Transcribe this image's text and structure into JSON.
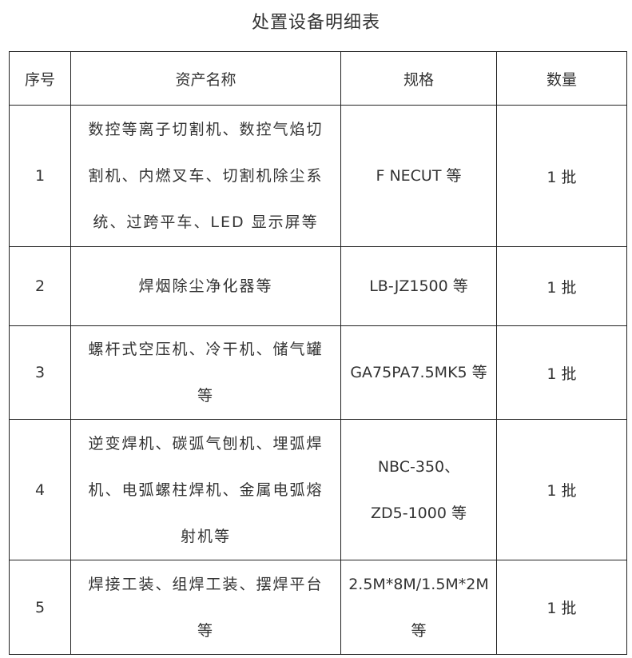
{
  "title": "处置设备明细表",
  "headers": [
    "序号",
    "资产名称",
    "规格",
    "数量"
  ],
  "rows": [
    {
      "no": "1",
      "name": [
        "数控等离子切割机、数控气焰切",
        "割机、内燃叉车、切割机除尘系",
        "统、过跨平车、LED 显示屏等"
      ],
      "spec": [
        "F NECUT 等"
      ],
      "qty": "1 批"
    },
    {
      "no": "2",
      "name": [
        "焊烟除尘净化器等"
      ],
      "spec": [
        "LB-JZ1500 等"
      ],
      "qty": "1 批"
    },
    {
      "no": "3",
      "name": [
        "螺杆式空压机、冷干机、储气罐",
        "等"
      ],
      "spec": [
        "GA75PA7.5MK5 等"
      ],
      "qty": "1 批"
    },
    {
      "no": "4",
      "name": [
        "逆变焊机、碳弧气刨机、埋弧焊",
        "机、电弧螺柱焊机、金属电弧熔",
        "射机等"
      ],
      "spec": [
        "NBC-350、",
        "ZD5-1000 等"
      ],
      "qty": "1 批"
    },
    {
      "no": "5",
      "name": [
        "焊接工装、组焊工装、摆焊平台",
        "等"
      ],
      "spec": [
        "2.5M*8M/1.5M*2M",
        "等"
      ],
      "qty": "1 批"
    }
  ]
}
